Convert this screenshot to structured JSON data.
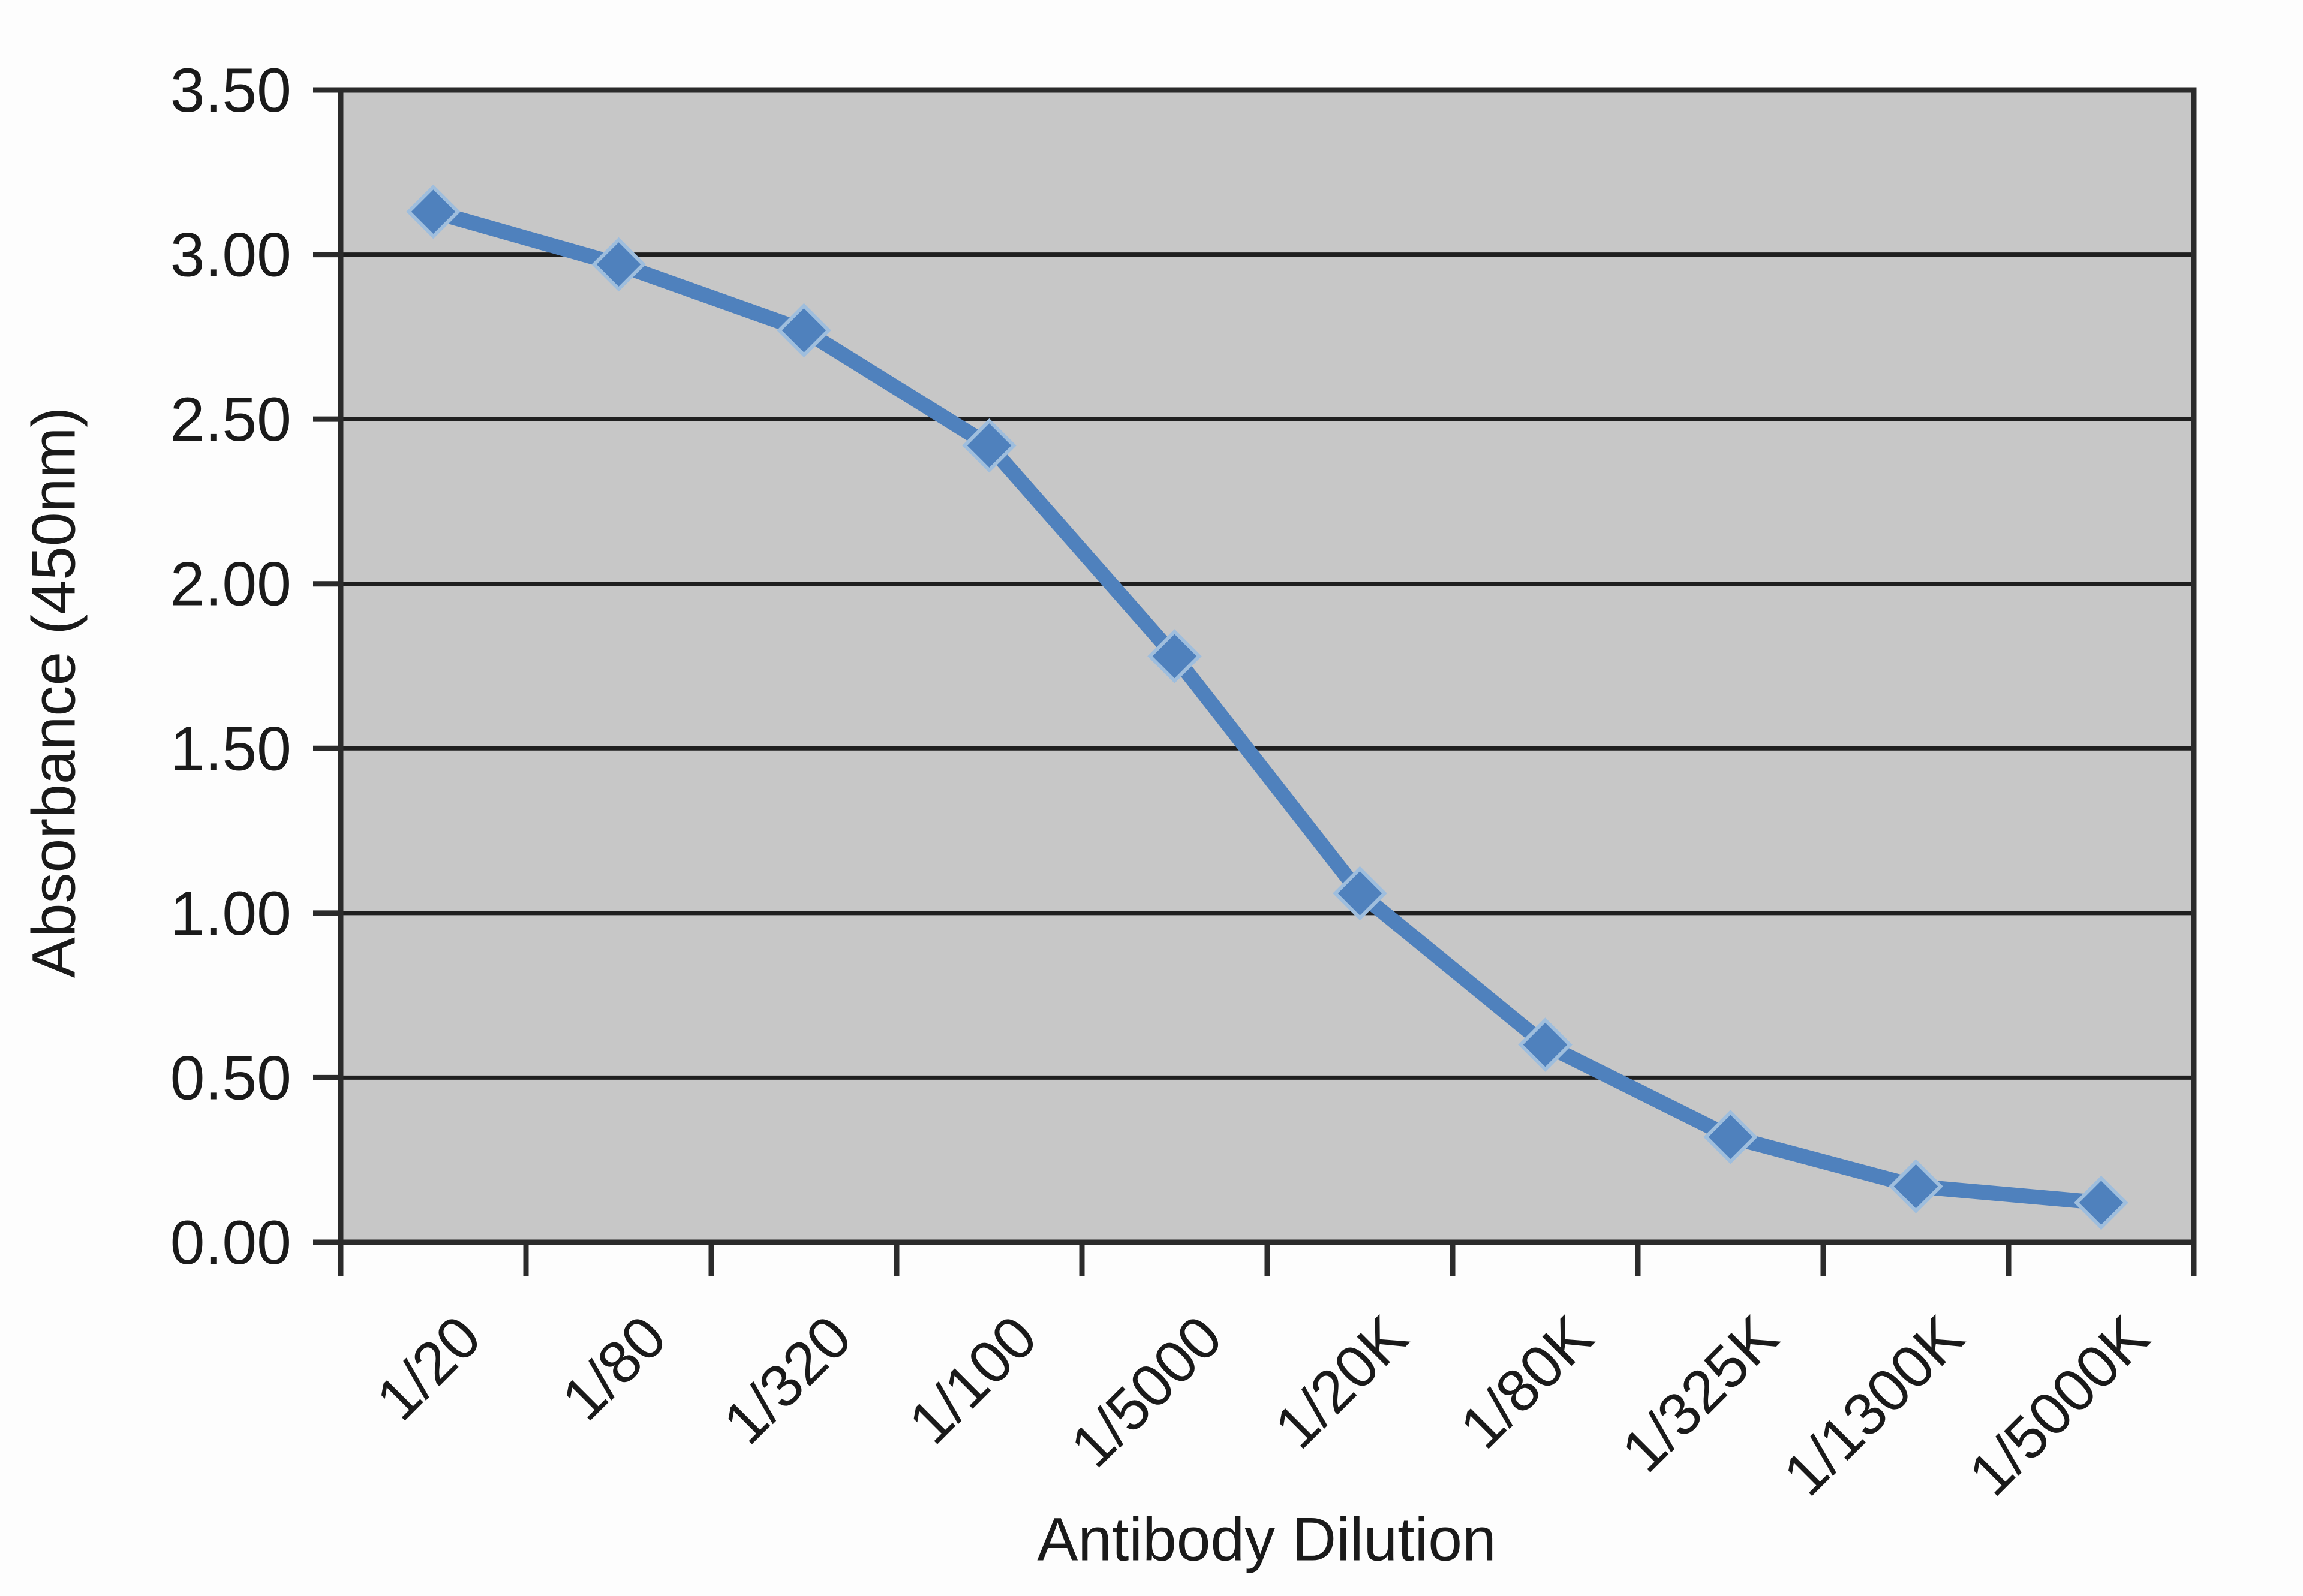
{
  "chart_data": {
    "type": "line",
    "title": "",
    "xlabel": "Antibody Dilution",
    "ylabel": "Absorbance (450nm)",
    "categories": [
      "1/20",
      "1/80",
      "1/320",
      "1/100",
      "1/5000",
      "1/20K",
      "1/80K",
      "1/325K",
      "1/1300K",
      "1/5000K"
    ],
    "series": [
      {
        "name": "Absorbance (450nm)",
        "values": [
          3.13,
          2.97,
          2.77,
          2.42,
          1.78,
          1.06,
          0.6,
          0.32,
          0.17,
          0.12
        ]
      }
    ],
    "ylim": [
      0,
      3.5
    ],
    "ytick_step": 0.5,
    "ytick_labels": [
      "0.00",
      "0.50",
      "1.00",
      "1.50",
      "2.00",
      "2.50",
      "3.00",
      "3.50"
    ],
    "xtick_label_rotation_deg": -45,
    "grid": "horizontal",
    "legend_position": "none",
    "marker_shape": "diamond",
    "colors": {
      "line": "#4f81bd",
      "marker_fill": "#4f81bd",
      "marker_halo": "#9fbedd",
      "plot_background": "#c7c7c7",
      "gridline": "#1f1f1f",
      "axis_line": "#2b2b2b",
      "tick_text": "#1a1a1a",
      "page_background": "#fdfdfd"
    }
  }
}
